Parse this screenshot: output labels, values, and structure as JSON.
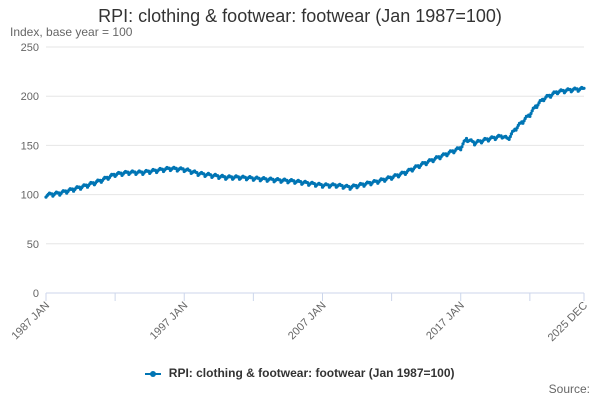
{
  "title": "RPI: clothing & footwear: footwear (Jan 1987=100)",
  "source": "Source:",
  "colors": {
    "series": "#0075b4",
    "grid": "#e6e6e6",
    "axis": "#ccd6eb",
    "text": "#666666"
  },
  "chart_data": {
    "type": "line",
    "title": "RPI: clothing & footwear: footwear (Jan 1987=100)",
    "ylabel": "Index, base year = 100",
    "xlabel": "",
    "ylim": [
      0,
      250
    ],
    "yticks": [
      0,
      50,
      100,
      150,
      200,
      250
    ],
    "xlim": [
      "1987-01",
      "2025-12"
    ],
    "xtick_labels": [
      {
        "date": "1987-01",
        "label": "1987 JAN"
      },
      {
        "date": "1997-01",
        "label": "1997 JAN"
      },
      {
        "date": "2007-01",
        "label": "2007 JAN"
      },
      {
        "date": "2017-01",
        "label": "2017 JAN"
      },
      {
        "date": "2025-12",
        "label": "2025 DEC"
      }
    ],
    "minor_xticks": [
      "1992-01",
      "2002-01",
      "2012-01",
      "2022-01"
    ],
    "grid": true,
    "legend": "bottom-center",
    "frequency": "monthly",
    "series": [
      {
        "name": "RPI: clothing & footwear: footwear (Jan 1987=100)",
        "color": "#0075b4",
        "anchors": [
          [
            "1987-01",
            100
          ],
          [
            "1988-01",
            102
          ],
          [
            "1989-01",
            106
          ],
          [
            "1990-01",
            110
          ],
          [
            "1991-01",
            115
          ],
          [
            "1992-01",
            121
          ],
          [
            "1993-01",
            123
          ],
          [
            "1994-01",
            123
          ],
          [
            "1995-01",
            125
          ],
          [
            "1996-01",
            127
          ],
          [
            "1997-01",
            126
          ],
          [
            "1998-01",
            122
          ],
          [
            "1999-01",
            120
          ],
          [
            "2000-01",
            118
          ],
          [
            "2001-01",
            118
          ],
          [
            "2002-01",
            117
          ],
          [
            "2003-01",
            116
          ],
          [
            "2004-01",
            115
          ],
          [
            "2005-01",
            114
          ],
          [
            "2006-01",
            112
          ],
          [
            "2007-01",
            110
          ],
          [
            "2008-01",
            110
          ],
          [
            "2009-01",
            108
          ],
          [
            "2010-01",
            111
          ],
          [
            "2011-01",
            114
          ],
          [
            "2012-01",
            118
          ],
          [
            "2013-01",
            123
          ],
          [
            "2014-01",
            130
          ],
          [
            "2015-01",
            136
          ],
          [
            "2016-01",
            142
          ],
          [
            "2017-01",
            148
          ],
          [
            "2017-06",
            157
          ],
          [
            "2018-01",
            153
          ],
          [
            "2019-01",
            157
          ],
          [
            "2020-01",
            160
          ],
          [
            "2020-06",
            157
          ],
          [
            "2021-01",
            168
          ],
          [
            "2022-01",
            182
          ],
          [
            "2022-06",
            190
          ],
          [
            "2023-01",
            198
          ],
          [
            "2024-01",
            205
          ],
          [
            "2025-01",
            207
          ],
          [
            "2025-12",
            208
          ]
        ]
      }
    ]
  }
}
